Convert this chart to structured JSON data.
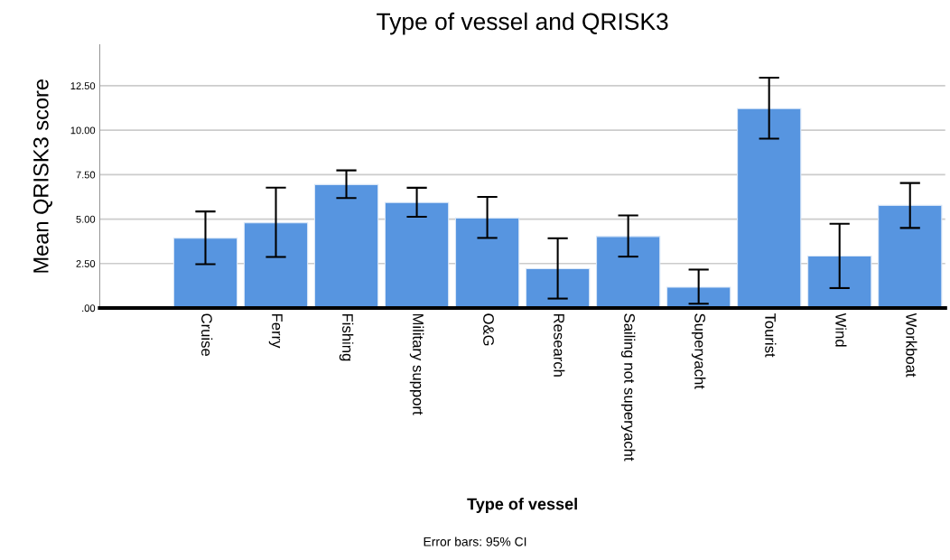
{
  "chart_data": {
    "type": "bar",
    "title": "Type of vessel and QRISK3",
    "xlabel": "Type of vessel",
    "ylabel": "Mean QRISK3 score",
    "categories": [
      "Cruise",
      "Ferry",
      "Fishing",
      "Military support",
      "O&G",
      "Research",
      "Sailing not superyacht",
      "Superyacht",
      "Tourist",
      "Wind",
      "Workboat"
    ],
    "values": [
      3.92,
      4.79,
      6.94,
      5.93,
      5.06,
      2.21,
      4.02,
      1.17,
      11.21,
      2.92,
      5.77
    ],
    "errors": [
      [
        2.46,
        5.43
      ],
      [
        2.87,
        6.77
      ],
      [
        6.18,
        7.74
      ],
      [
        5.13,
        6.76
      ],
      [
        3.94,
        6.25
      ],
      [
        0.53,
        3.92
      ],
      [
        2.89,
        5.21
      ],
      [
        0.24,
        2.16
      ],
      [
        9.52,
        12.95
      ],
      [
        1.12,
        4.74
      ],
      [
        4.5,
        7.03
      ]
    ],
    "color": "#5795e0",
    "ylim": [
      0,
      14.8
    ],
    "yticks": [
      {
        "value": 0,
        "label": ".00"
      },
      {
        "value": 2.5,
        "label": "2.50"
      },
      {
        "value": 5,
        "label": "5.00"
      },
      {
        "value": 7.5,
        "label": "7.50"
      },
      {
        "value": 10,
        "label": "10.00"
      },
      {
        "value": 12.5,
        "label": "12.50"
      }
    ],
    "grid": "y",
    "annotations": [
      "Error bars: 95% CI"
    ]
  }
}
